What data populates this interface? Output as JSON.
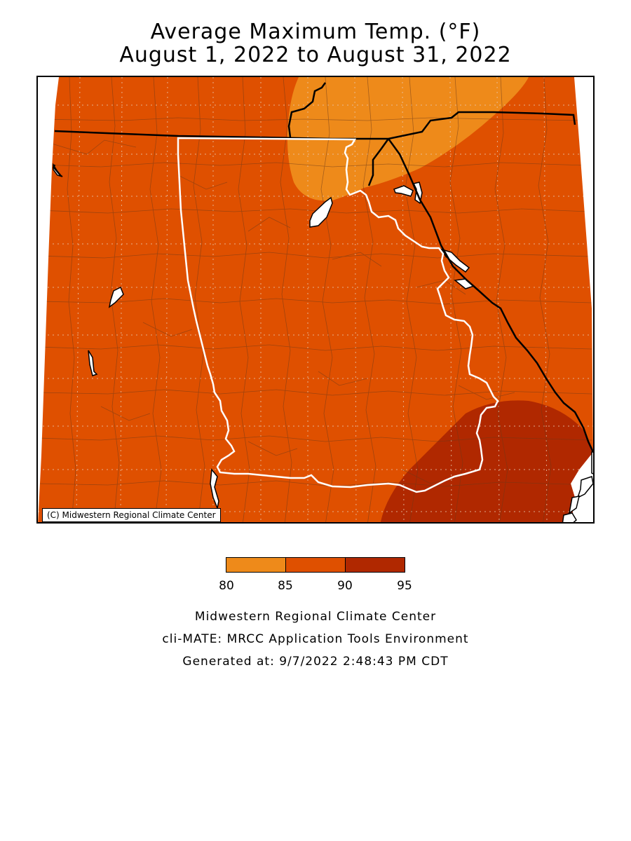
{
  "title": {
    "line1": "Average Maximum Temp. (°F)",
    "line2": "August 1, 2022 to August 31, 2022"
  },
  "map": {
    "copyright": "(C) Midwestern Regional Climate Center",
    "colors": {
      "band_80_85": "#EE8A1A",
      "band_85_90": "#DF5000",
      "band_90_95": "#B02800",
      "water": "#ffffff",
      "county_lines": "#6b3a1a",
      "state_outline": "#ffffff",
      "other_borders": "#000000"
    }
  },
  "legend": {
    "bands": [
      {
        "from": 80,
        "to": 85,
        "color": "#EE8A1A"
      },
      {
        "from": 85,
        "to": 90,
        "color": "#DF5000"
      },
      {
        "from": 90,
        "to": 95,
        "color": "#B02800"
      }
    ],
    "ticks": [
      "80",
      "85",
      "90",
      "95"
    ]
  },
  "footer": {
    "line1": "Midwestern Regional Climate Center",
    "line2": "cli-MATE: MRCC Application Tools Environment",
    "line3": "Generated at: 9/7/2022 2:48:43 PM CDT"
  }
}
